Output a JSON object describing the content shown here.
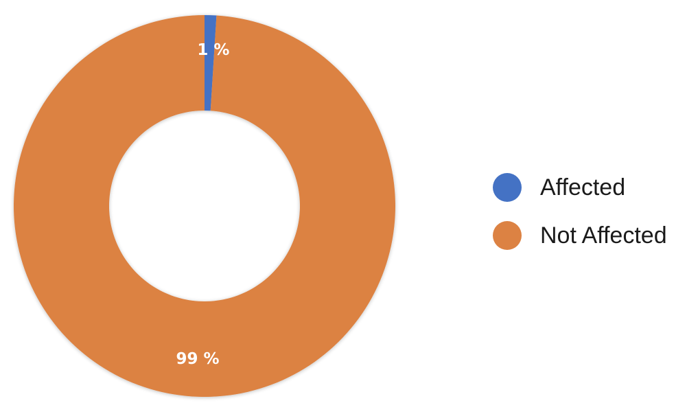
{
  "chart_data": {
    "type": "pie",
    "variant": "donut",
    "categories": [
      "Affected",
      "Not Affected"
    ],
    "values": [
      1,
      99
    ],
    "data_labels": [
      "1 %",
      "99 %"
    ],
    "colors": [
      "#4472c4",
      "#dc8243"
    ],
    "title": "",
    "legend_placement": "right"
  },
  "legend": {
    "items": [
      {
        "label": "Affected",
        "color": "#4472c4"
      },
      {
        "label": "Not Affected",
        "color": "#dc8243"
      }
    ]
  }
}
